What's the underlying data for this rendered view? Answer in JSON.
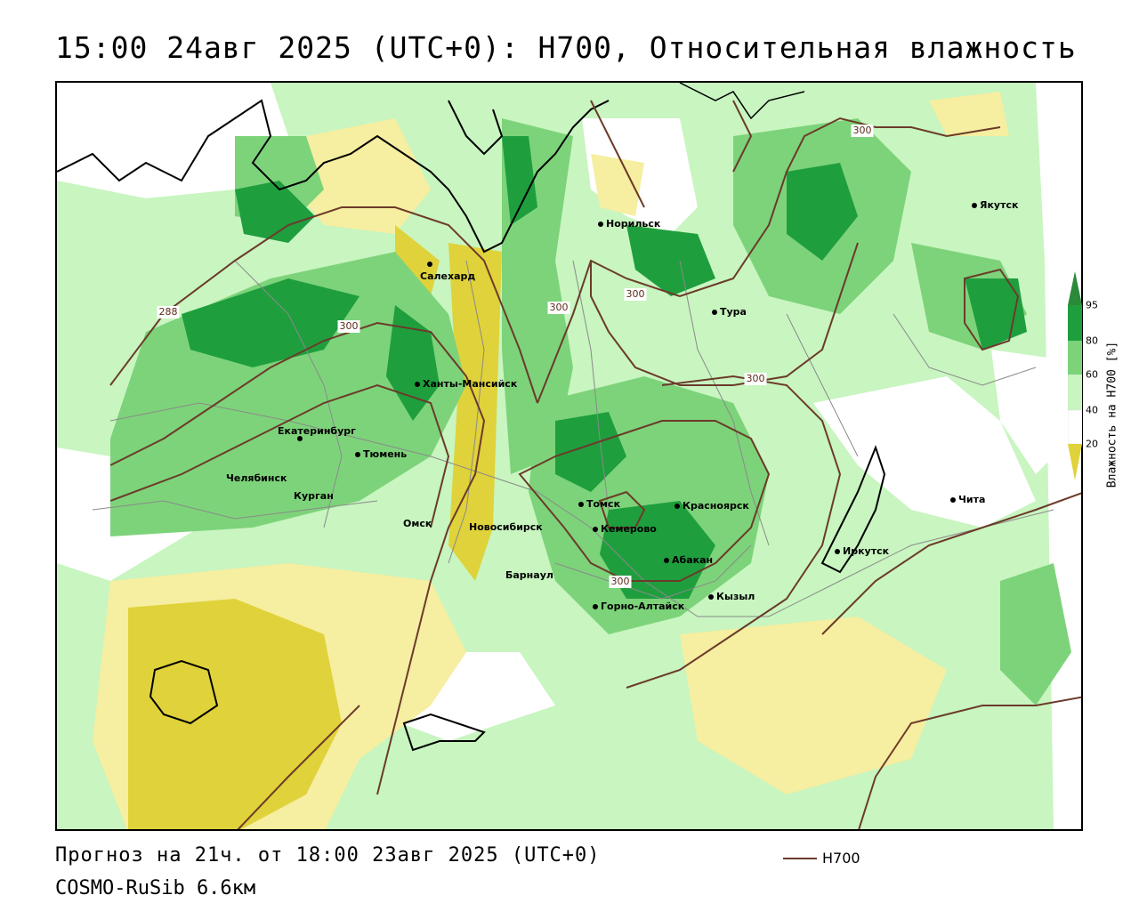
{
  "title": "15:00 24авг 2025 (UTC+0): H700, Относительная влажность",
  "footer": {
    "forecast": "Прогноз на 21ч. от 18:00 23авг 2025 (UTC+0)",
    "model": "COSMO-RuSib 6.6км"
  },
  "legend": {
    "label": "H700",
    "line_color": "#6b3b2a"
  },
  "colorbar": {
    "title": "Влажность на H700 [%]",
    "ticks": [
      "95",
      "80",
      "60",
      "40",
      "20"
    ],
    "colors": {
      "above_95": "#2a8a3a",
      "80_95": "#1f9e3e",
      "60_80": "#7dd37a",
      "40_60": "#c8f5c0",
      "20_40": "#ffffff",
      "10_20": "#f6eea0",
      "below_10": "#e0d23a"
    }
  },
  "isolines": [
    {
      "label": "300"
    },
    {
      "label": "300"
    },
    {
      "label": "300"
    },
    {
      "label": "300"
    },
    {
      "label": "300"
    },
    {
      "label": "288"
    }
  ],
  "cities": [
    {
      "name": "Салехард"
    },
    {
      "name": "Норильск"
    },
    {
      "name": "Тура"
    },
    {
      "name": "Якутск"
    },
    {
      "name": "Ханты-Мансийск"
    },
    {
      "name": "Екатеринбург"
    },
    {
      "name": "Тюмень"
    },
    {
      "name": "Челябинск"
    },
    {
      "name": "Курган"
    },
    {
      "name": "Омск"
    },
    {
      "name": "Новосибирск"
    },
    {
      "name": "Томск"
    },
    {
      "name": "Кемерово"
    },
    {
      "name": "Красноярск"
    },
    {
      "name": "Барнаул"
    },
    {
      "name": "Абакан"
    },
    {
      "name": "Горно-Алтайск"
    },
    {
      "name": "Кызыл"
    },
    {
      "name": "Иркутск"
    },
    {
      "name": "Чита"
    }
  ]
}
